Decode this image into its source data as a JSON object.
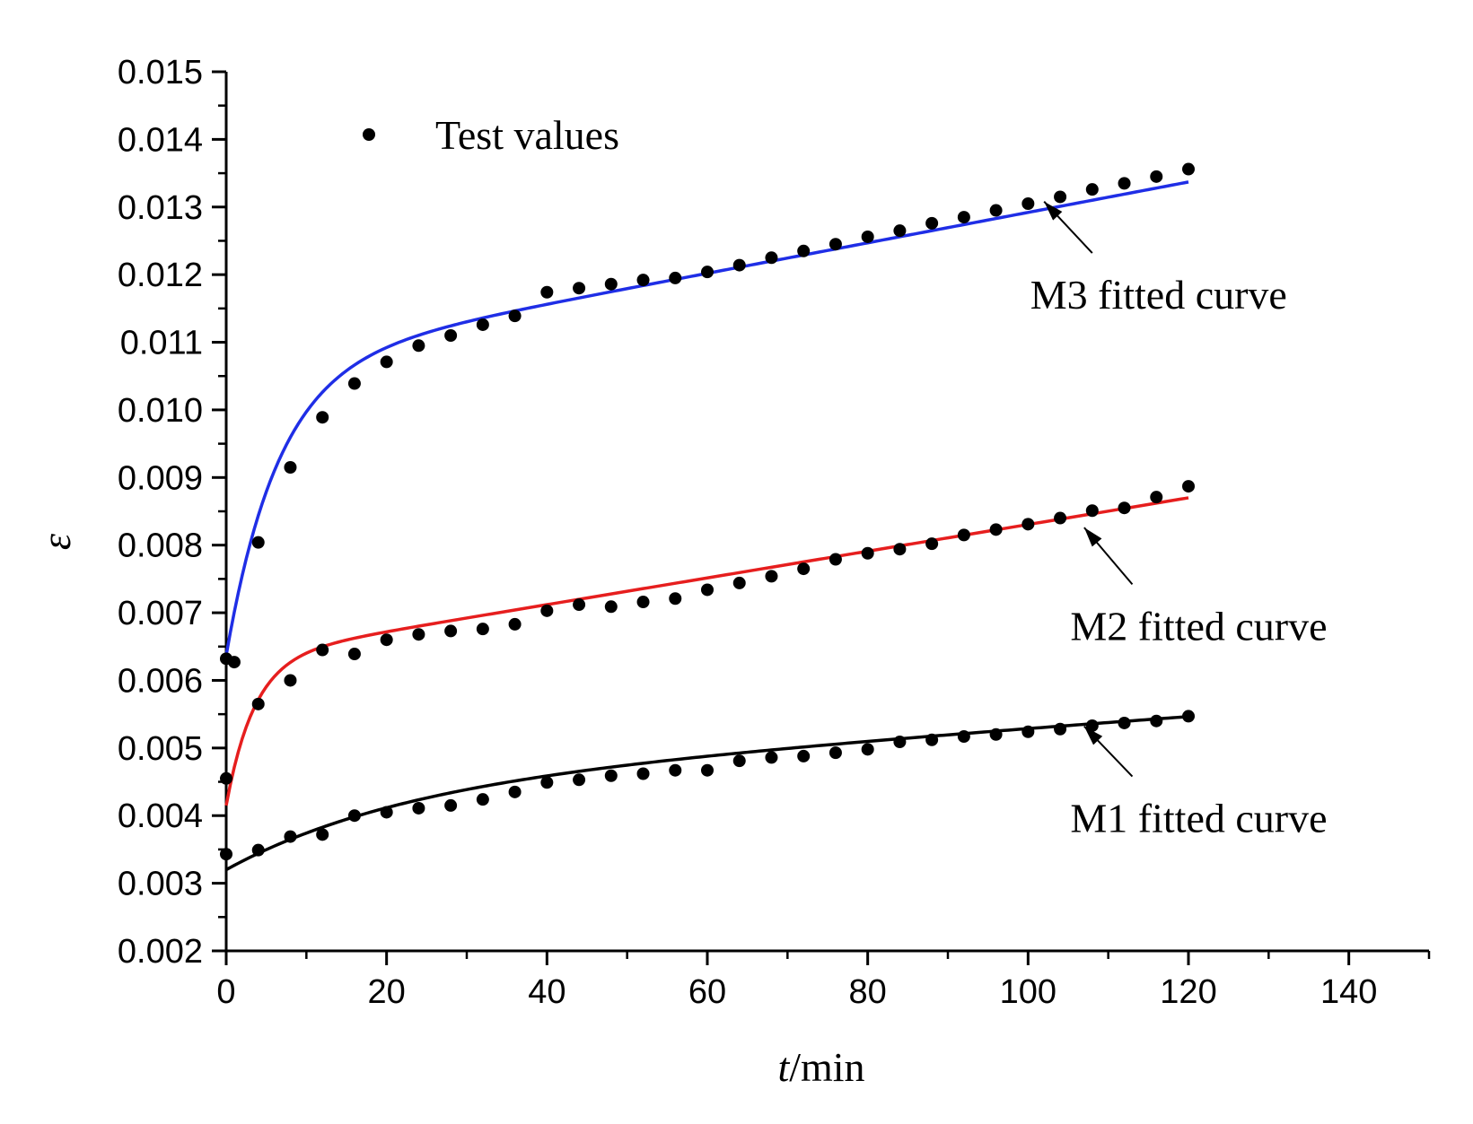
{
  "chart_data": {
    "type": "scatter",
    "title": "",
    "xlabel_italic": "t",
    "xlabel_rest": "/min",
    "ylabel": "ε",
    "xlim": [
      0,
      150
    ],
    "ylim": [
      0.002,
      0.015
    ],
    "x_ticks": [
      0,
      20,
      40,
      60,
      80,
      100,
      120,
      140
    ],
    "x_tick_labels": [
      "0",
      "20",
      "40",
      "60",
      "80",
      "100",
      "120",
      "140"
    ],
    "y_ticks": [
      0.002,
      0.003,
      0.004,
      0.005,
      0.006,
      0.007,
      0.008,
      0.009,
      0.01,
      0.011,
      0.012,
      0.013,
      0.014,
      0.015
    ],
    "y_tick_labels": [
      "0.002",
      "0.003",
      "0.004",
      "0.005",
      "0.006",
      "0.007",
      "0.008",
      "0.009",
      "0.010",
      "0.011",
      "0.012",
      "0.013",
      "0.014",
      "0.015"
    ],
    "legend": {
      "position": "top-left",
      "label": "Test values"
    },
    "series": [
      {
        "name": "M3",
        "curve_label": "M3 fitted curve",
        "color": "#1f2ee6",
        "test_values": {
          "x": [
            0,
            1,
            4,
            8,
            12,
            16,
            20,
            24,
            28,
            32,
            36,
            40,
            44,
            48,
            52,
            56,
            60,
            64,
            68,
            72,
            76,
            80,
            84,
            88,
            92,
            96,
            100,
            104,
            108,
            112,
            116,
            120
          ],
          "y": [
            0.00632,
            0.00627,
            0.00804,
            0.00915,
            0.00989,
            0.01039,
            0.01071,
            0.01095,
            0.0111,
            0.01126,
            0.01139,
            0.01174,
            0.0118,
            0.01186,
            0.01192,
            0.01195,
            0.01204,
            0.01214,
            0.01225,
            0.01235,
            0.01245,
            0.01256,
            0.01265,
            0.01276,
            0.01285,
            0.01295,
            0.01305,
            0.01315,
            0.01326,
            0.01335,
            0.01345,
            0.01356
          ]
        },
        "fit": {
          "a": 0.00637,
          "b": 0.0043,
          "tau": 6.5,
          "c": 2.25e-05
        },
        "annotation": {
          "arrow_tip_x": 102,
          "arrow_tip_y": 0.01308,
          "tail_x": 108,
          "tail_y": 0.01232
        }
      },
      {
        "name": "M2",
        "curve_label": "M2 fitted curve",
        "color": "#e61e1e",
        "test_values": {
          "x": [
            0,
            4,
            8,
            12,
            16,
            20,
            24,
            28,
            32,
            36,
            40,
            44,
            48,
            52,
            56,
            60,
            64,
            68,
            72,
            76,
            80,
            84,
            88,
            92,
            96,
            100,
            104,
            108,
            112,
            116,
            120
          ],
          "y": [
            0.00455,
            0.00565,
            0.006,
            0.00645,
            0.00639,
            0.0066,
            0.00668,
            0.00673,
            0.00676,
            0.00683,
            0.00703,
            0.00712,
            0.00709,
            0.00716,
            0.00721,
            0.00734,
            0.00744,
            0.00754,
            0.00765,
            0.00779,
            0.00788,
            0.00794,
            0.00802,
            0.00815,
            0.00823,
            0.00831,
            0.0084,
            0.00851,
            0.00855,
            0.00871,
            0.00887
          ]
        },
        "fit": {
          "a": 0.00415,
          "b": 0.00218,
          "tau": 3.5,
          "c": 1.975e-05
        },
        "annotation": {
          "arrow_tip_x": 107,
          "arrow_tip_y": 0.00826,
          "tail_x": 113,
          "tail_y": 0.00742
        }
      },
      {
        "name": "M1",
        "curve_label": "M1 fitted curve",
        "color": "#000000",
        "test_values": {
          "x": [
            0,
            4,
            8,
            12,
            16,
            20,
            24,
            28,
            32,
            36,
            40,
            44,
            48,
            52,
            56,
            60,
            64,
            68,
            72,
            76,
            80,
            84,
            88,
            92,
            96,
            100,
            104,
            108,
            112,
            116,
            120
          ],
          "y": [
            0.00343,
            0.00349,
            0.00369,
            0.00372,
            0.004,
            0.00405,
            0.00411,
            0.00415,
            0.00424,
            0.00435,
            0.00449,
            0.00453,
            0.00459,
            0.00462,
            0.00467,
            0.00467,
            0.00481,
            0.00486,
            0.00488,
            0.00493,
            0.00498,
            0.00509,
            0.00512,
            0.00517,
            0.0052,
            0.00524,
            0.00528,
            0.00533,
            0.00537,
            0.0054,
            0.00547
          ]
        },
        "fit": {
          "a": 0.0032,
          "b": 0.00125,
          "tau": 22,
          "c": 8.5e-06
        },
        "annotation": {
          "arrow_tip_x": 107,
          "arrow_tip_y": 0.00532,
          "tail_x": 113,
          "tail_y": 0.00458
        }
      }
    ]
  }
}
